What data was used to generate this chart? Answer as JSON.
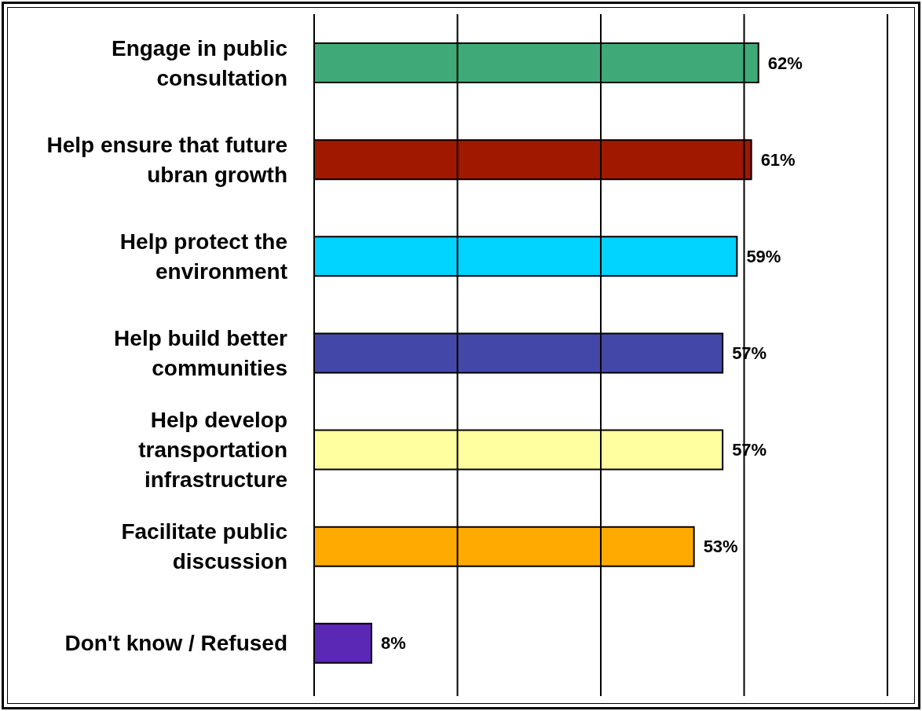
{
  "chart_data": {
    "type": "bar",
    "orientation": "horizontal",
    "categories": [
      "Engage in public consultation",
      "Help ensure that future ubran growth",
      "Help protect the environment",
      "Help build better communities",
      "Help develop transportation infrastructure",
      "Facilitate public discussion",
      "Don't know / Refused"
    ],
    "values": [
      62,
      61,
      59,
      57,
      57,
      53,
      8
    ],
    "colors": [
      "#3faa78",
      "#a01800",
      "#00d4ff",
      "#4348a8",
      "#ffffa0",
      "#ffaa00",
      "#5a28b4"
    ],
    "value_labels": [
      "62%",
      "61%",
      "59%",
      "57%",
      "57%",
      "53%",
      "8%"
    ],
    "xlim": [
      0,
      80
    ],
    "xticks": [
      {
        "value": 0,
        "label": null
      },
      {
        "value": 20,
        "label": null
      },
      {
        "value": 40,
        "label": null
      },
      {
        "value": 60,
        "label": null
      },
      {
        "value": 80,
        "label": null
      }
    ],
    "tick_labels": "y",
    "grid": "x",
    "legend": false
  }
}
